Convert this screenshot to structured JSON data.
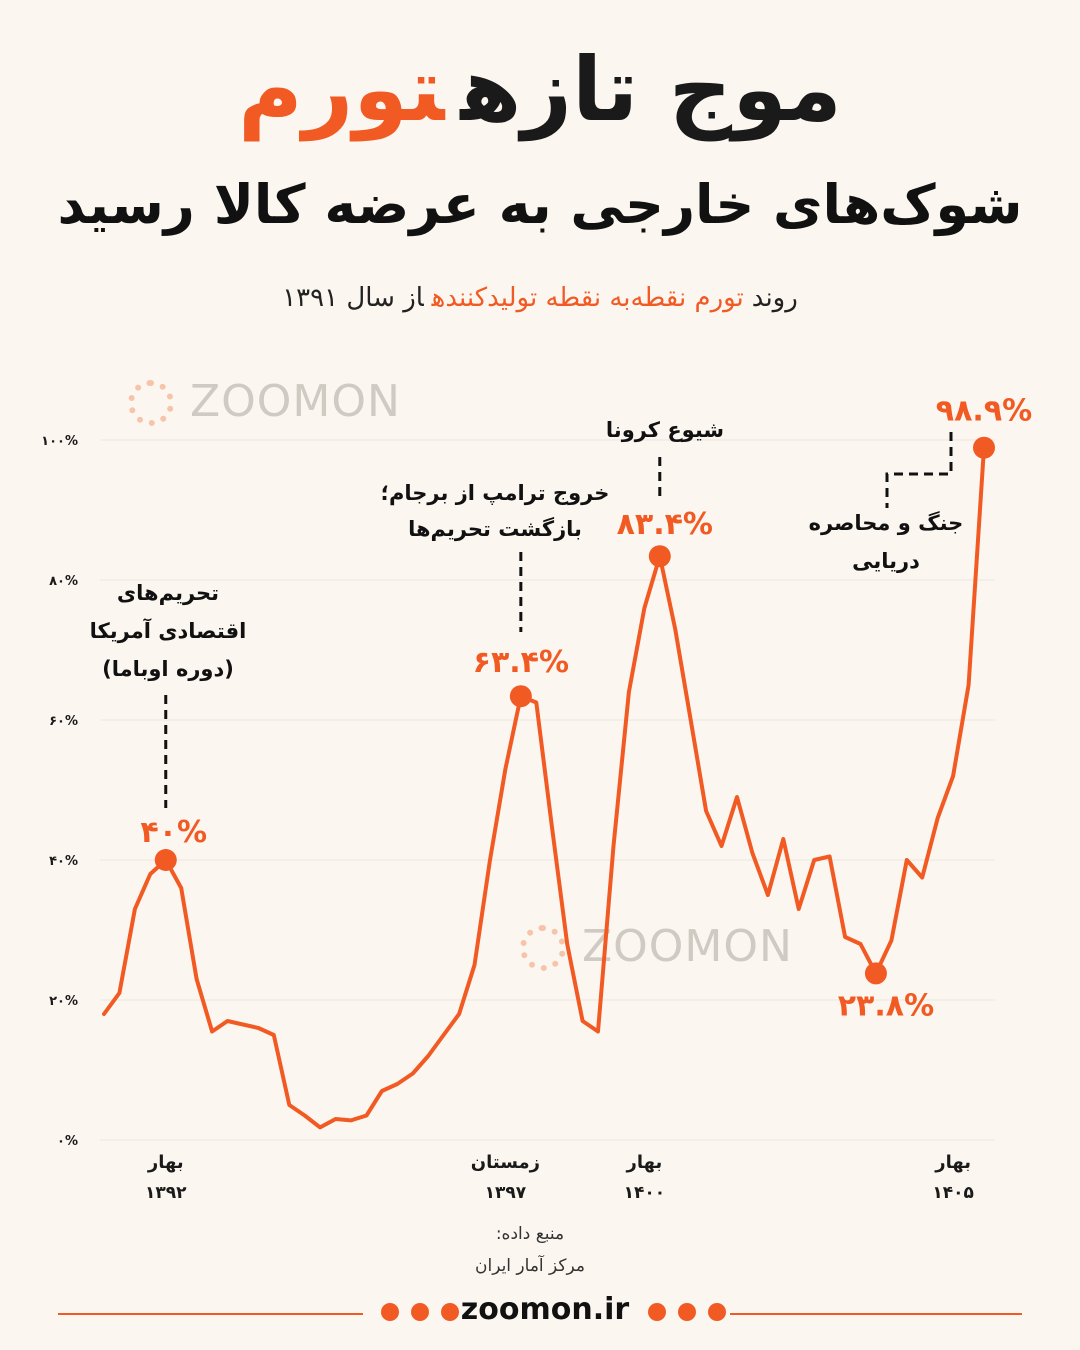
{
  "header": {
    "title_dark": "موج تازه",
    "title_accent": "تورم",
    "subtitle": "شوک‌های خارجی به عرضه کالا رسید",
    "caption_start": "روند",
    "caption_accent": "تورم نقطه‌به نقطه تولیدکننده",
    "caption_end": "از سال ۱۳۹۱"
  },
  "watermark": "ZOOMON",
  "colors": {
    "accent": "#f25a24",
    "text": "#1a1a1a",
    "background": "#fbf7f0",
    "grid": "#ebe6de"
  },
  "chart_data": {
    "type": "line",
    "ylim": [
      0,
      100
    ],
    "y_ticks": [
      0,
      20,
      40,
      60,
      80,
      100
    ],
    "y_tick_labels": [
      "۰%",
      "۲۰%",
      "۴۰%",
      "۶۰%",
      "۸۰%",
      "۱۰۰%"
    ],
    "x_ticks": [
      {
        "index": 4,
        "season": "بهار",
        "year": "۱۳۹۲"
      },
      {
        "index": 26,
        "season": "زمستان",
        "year": "۱۳۹۷"
      },
      {
        "index": 35,
        "season": "بهار",
        "year": "۱۴۰۰"
      },
      {
        "index": 55,
        "season": "بهار",
        "year": "۱۴۰۵"
      }
    ],
    "series": [
      {
        "values": [
          18,
          21,
          33,
          38,
          40,
          36,
          23,
          15.5,
          17,
          16.5,
          16,
          15,
          5,
          3.5,
          1.8,
          3,
          2.8,
          3.5,
          7,
          8,
          9.5,
          12,
          15,
          18,
          25,
          40,
          53,
          63.4,
          62.5,
          45,
          28,
          17,
          15.5,
          42,
          64,
          76,
          83.4,
          73,
          60,
          47,
          42,
          49,
          41,
          35,
          43,
          33,
          40,
          40.5,
          29,
          28,
          23.8,
          28.5,
          40,
          37.5,
          46,
          52,
          65,
          98.9
        ]
      }
    ],
    "points": [
      {
        "index": 4,
        "label": "۴۰%"
      },
      {
        "index": 27,
        "label": "۶۳.۴%"
      },
      {
        "index": 36,
        "label": "۸۳.۴%"
      },
      {
        "index": 50,
        "label": "۲۳.۸%"
      },
      {
        "index": 57,
        "label": "۹۸.۹%"
      }
    ],
    "annotations": [
      {
        "index": 4,
        "lines": [
          "تحریم‌های",
          "اقتصادی آمریکا",
          "(دوره اوباما)"
        ]
      },
      {
        "index": 27,
        "lines": [
          "خروج ترامپ از برجام؛",
          "بازگشت تحریم‌ها"
        ]
      },
      {
        "index": 36,
        "lines": [
          "شیوع کرونا"
        ]
      },
      {
        "index": 57,
        "lines": [
          "جنگ و محاصره",
          "دریایی"
        ]
      }
    ],
    "grid": true,
    "legend": "none"
  },
  "source": {
    "label": "منبع داده:",
    "value": "مرکز آمار ایران"
  },
  "footer": {
    "site": "zoomon.ir"
  }
}
